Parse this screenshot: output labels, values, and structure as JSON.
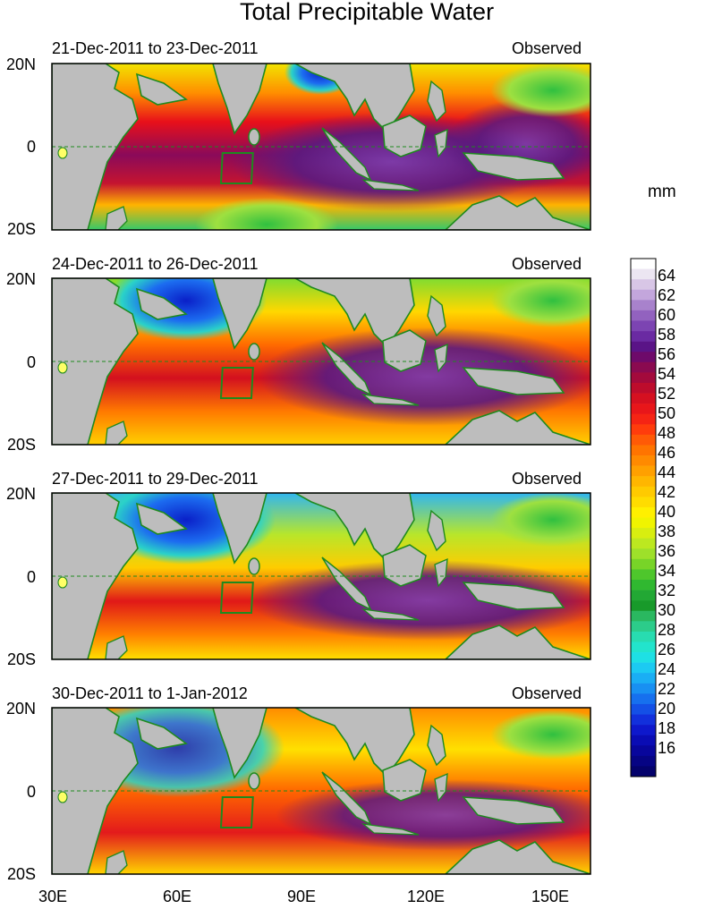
{
  "title": "Total Precipitable Water",
  "panels": [
    {
      "date_range": "21-Dec-2011 to 23-Dec-2011",
      "status": "Observed"
    },
    {
      "date_range": "24-Dec-2011 to 26-Dec-2011",
      "status": "Observed"
    },
    {
      "date_range": "27-Dec-2011 to 29-Dec-2011",
      "status": "Observed"
    },
    {
      "date_range": "30-Dec-2011 to 1-Jan-2012",
      "status": "Observed"
    }
  ],
  "y_labels": [
    "20N",
    "0",
    "20S"
  ],
  "x_labels": [
    "30E",
    "60E",
    "90E",
    "120E",
    "150E"
  ],
  "colorbar": {
    "unit": "mm",
    "labels": [
      "64",
      "62",
      "60",
      "58",
      "56",
      "54",
      "52",
      "50",
      "48",
      "46",
      "44",
      "42",
      "40",
      "38",
      "36",
      "34",
      "32",
      "30",
      "28",
      "26",
      "24",
      "22",
      "20",
      "18",
      "16"
    ]
  },
  "colors": {
    "land": "#bdbdbd",
    "coast": "#1e8a1e",
    "equator": "#1e8a1e"
  }
}
